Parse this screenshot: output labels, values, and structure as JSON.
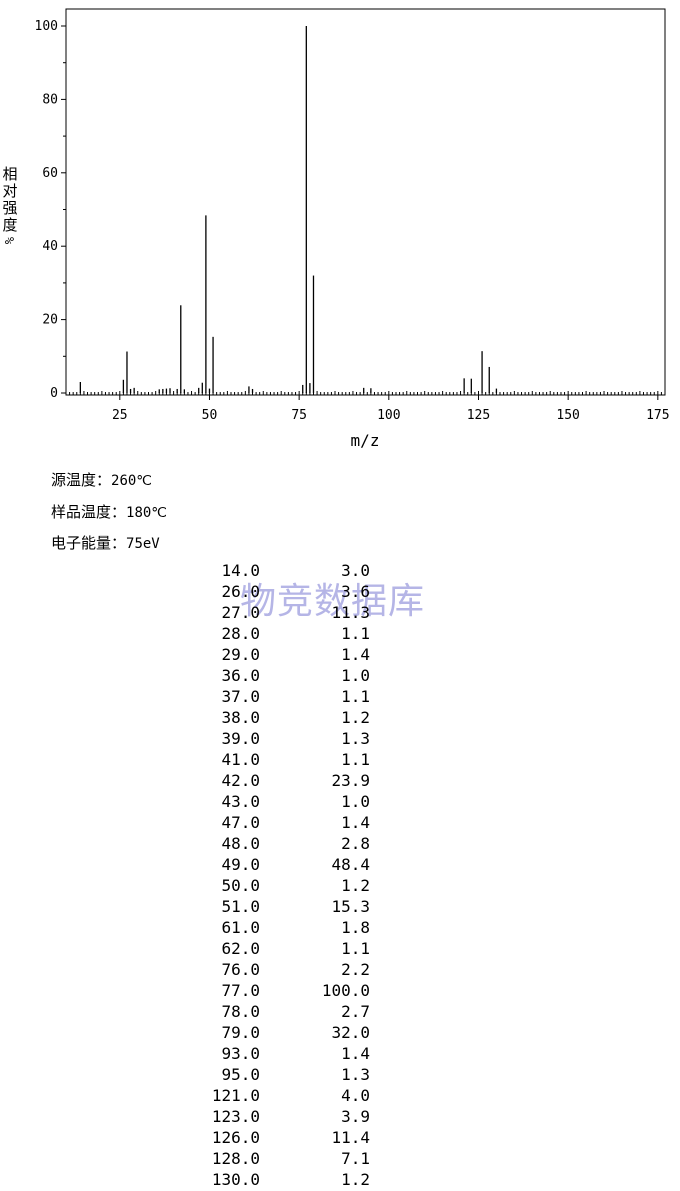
{
  "chart_data": {
    "type": "bar",
    "xlabel": "m/z",
    "ylabel": "相对强度",
    "ylabel_unit": "%",
    "xlim": [
      10,
      177
    ],
    "ylim": [
      0,
      105
    ],
    "xticks": [
      25,
      50,
      75,
      100,
      125,
      150,
      175
    ],
    "yticks": [
      0,
      20,
      40,
      60,
      80,
      100
    ],
    "peaks": [
      {
        "mz": 14,
        "abundance": 3.0
      },
      {
        "mz": 26,
        "abundance": 3.6
      },
      {
        "mz": 27,
        "abundance": 11.3
      },
      {
        "mz": 28,
        "abundance": 1.1
      },
      {
        "mz": 29,
        "abundance": 1.4
      },
      {
        "mz": 36,
        "abundance": 1.0
      },
      {
        "mz": 37,
        "abundance": 1.1
      },
      {
        "mz": 38,
        "abundance": 1.2
      },
      {
        "mz": 39,
        "abundance": 1.3
      },
      {
        "mz": 41,
        "abundance": 1.1
      },
      {
        "mz": 42,
        "abundance": 23.9
      },
      {
        "mz": 43,
        "abundance": 1.0
      },
      {
        "mz": 47,
        "abundance": 1.4
      },
      {
        "mz": 48,
        "abundance": 2.8
      },
      {
        "mz": 49,
        "abundance": 48.4
      },
      {
        "mz": 50,
        "abundance": 1.2
      },
      {
        "mz": 51,
        "abundance": 15.3
      },
      {
        "mz": 61,
        "abundance": 1.8
      },
      {
        "mz": 62,
        "abundance": 1.1
      },
      {
        "mz": 76,
        "abundance": 2.2
      },
      {
        "mz": 77,
        "abundance": 100.0
      },
      {
        "mz": 78,
        "abundance": 2.7
      },
      {
        "mz": 79,
        "abundance": 32.0
      },
      {
        "mz": 93,
        "abundance": 1.4
      },
      {
        "mz": 95,
        "abundance": 1.3
      },
      {
        "mz": 121,
        "abundance": 4.0
      },
      {
        "mz": 123,
        "abundance": 3.9
      },
      {
        "mz": 126,
        "abundance": 11.4
      },
      {
        "mz": 128,
        "abundance": 7.1
      },
      {
        "mz": 130,
        "abundance": 1.2
      }
    ]
  },
  "conditions": [
    {
      "label": "源温度：",
      "value": "260℃"
    },
    {
      "label": "样品温度：",
      "value": "180℃"
    },
    {
      "label": "电子能量：",
      "value": "75eV"
    }
  ],
  "peak_table": [
    [
      "14.0",
      "3.0"
    ],
    [
      "26.0",
      "3.6"
    ],
    [
      "27.0",
      "11.3"
    ],
    [
      "28.0",
      "1.1"
    ],
    [
      "29.0",
      "1.4"
    ],
    [
      "36.0",
      "1.0"
    ],
    [
      "37.0",
      "1.1"
    ],
    [
      "38.0",
      "1.2"
    ],
    [
      "39.0",
      "1.3"
    ],
    [
      "41.0",
      "1.1"
    ],
    [
      "42.0",
      "23.9"
    ],
    [
      "43.0",
      "1.0"
    ],
    [
      "47.0",
      "1.4"
    ],
    [
      "48.0",
      "2.8"
    ],
    [
      "49.0",
      "48.4"
    ],
    [
      "50.0",
      "1.2"
    ],
    [
      "51.0",
      "15.3"
    ],
    [
      "61.0",
      "1.8"
    ],
    [
      "62.0",
      "1.1"
    ],
    [
      "76.0",
      "2.2"
    ],
    [
      "77.0",
      "100.0"
    ],
    [
      "78.0",
      "2.7"
    ],
    [
      "79.0",
      "32.0"
    ],
    [
      "93.0",
      "1.4"
    ],
    [
      "95.0",
      "1.3"
    ],
    [
      "121.0",
      "4.0"
    ],
    [
      "123.0",
      "3.9"
    ],
    [
      "126.0",
      "11.4"
    ],
    [
      "128.0",
      "7.1"
    ],
    [
      "130.0",
      "1.2"
    ]
  ],
  "watermark": "物竞数据库"
}
